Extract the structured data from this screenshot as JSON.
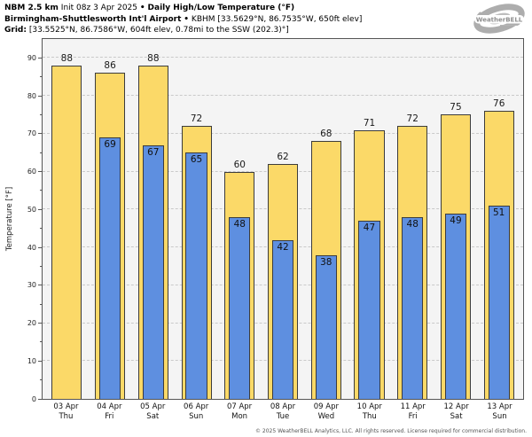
{
  "title": {
    "model": "NBM 2.5 km",
    "init": "Init 08z 3 Apr 2025",
    "bullet": "•",
    "product": "Daily High/Low Temperature (°F)",
    "station_name": "Birmingham-Shuttlesworth Int'l Airport",
    "station_info": "KBHM [33.5629°N, 86.7535°W, 650ft elev]",
    "grid_label": "Grid:",
    "grid_info": "[33.5525°N, 86.7586°W, 604ft elev, 0.78mi to the SSW (202.3)°]"
  },
  "logo": {
    "brand": "WeatherBELL"
  },
  "footer": {
    "copyright": "© 2025 WeatherBELL Analytics, LLC. All rights reserved. License required for commercial distribution."
  },
  "colors": {
    "high_bar": "#FBD968",
    "low_bar": "#5E8FE0",
    "bar_border": "#3C3C3C",
    "plot_bg": "#F4F4F4",
    "grid": "#C9C9C9",
    "axis": "#555555",
    "logo_gray": "#ADADAD"
  },
  "chart_data": {
    "type": "bar",
    "title": "NBM 2.5 km Daily High/Low Temperature (°F) — Birmingham-Shuttlesworth Int'l Airport (KBHM)",
    "xlabel": "",
    "ylabel": "Temperature [°F]",
    "ylim": [
      0,
      95
    ],
    "yticks": [
      0,
      10,
      20,
      30,
      40,
      50,
      60,
      70,
      80,
      90
    ],
    "minor_tick_step": 5,
    "grid": "horizontal-dashed",
    "legend_position": "none",
    "categories": [
      "03 Apr",
      "04 Apr",
      "05 Apr",
      "06 Apr",
      "07 Apr",
      "08 Apr",
      "09 Apr",
      "10 Apr",
      "11 Apr",
      "12 Apr",
      "13 Apr"
    ],
    "weekdays": [
      "Thu",
      "Fri",
      "Sat",
      "Sun",
      "Mon",
      "Tue",
      "Wed",
      "Thu",
      "Fri",
      "Sat",
      "Sun"
    ],
    "series": [
      {
        "name": "Daily High",
        "color": "#FBD968",
        "values": [
          88,
          86,
          88,
          72,
          60,
          62,
          68,
          71,
          72,
          75,
          76
        ]
      },
      {
        "name": "Daily Low",
        "color": "#5E8FE0",
        "values": [
          null,
          69,
          67,
          65,
          48,
          42,
          38,
          47,
          48,
          49,
          51
        ]
      }
    ]
  }
}
